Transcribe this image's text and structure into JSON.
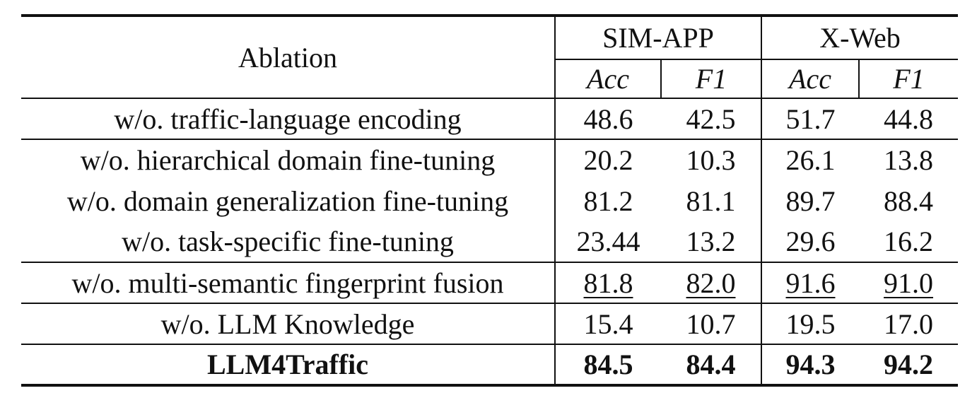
{
  "header": {
    "ablation": "Ablation",
    "groups": [
      "SIM-APP",
      "X-Web"
    ],
    "metrics": [
      "Acc",
      "F1",
      "Acc",
      "F1"
    ]
  },
  "rows": [
    {
      "name": "w/o. traffic-language encoding",
      "values": [
        "48.6",
        "42.5",
        "51.7",
        "44.8"
      ]
    },
    {
      "name": "w/o. hierarchical domain fine-tuning",
      "values": [
        "20.2",
        "10.3",
        "26.1",
        "13.8"
      ]
    },
    {
      "name": "w/o. domain generalization fine-tuning",
      "values": [
        "81.2",
        "81.1",
        "89.7",
        "88.4"
      ]
    },
    {
      "name": "w/o. task-specific fine-tuning",
      "values": [
        "23.44",
        "13.2",
        "29.6",
        "16.2"
      ]
    },
    {
      "name": "w/o. multi-semantic fingerprint fusion",
      "values": [
        "81.8",
        "82.0",
        "91.6",
        "91.0"
      ]
    },
    {
      "name": "w/o. LLM Knowledge",
      "values": [
        "15.4",
        "10.7",
        "19.5",
        "17.0"
      ]
    },
    {
      "name": "LLM4Traffic",
      "values": [
        "84.5",
        "84.4",
        "94.3",
        "94.2"
      ]
    }
  ]
}
